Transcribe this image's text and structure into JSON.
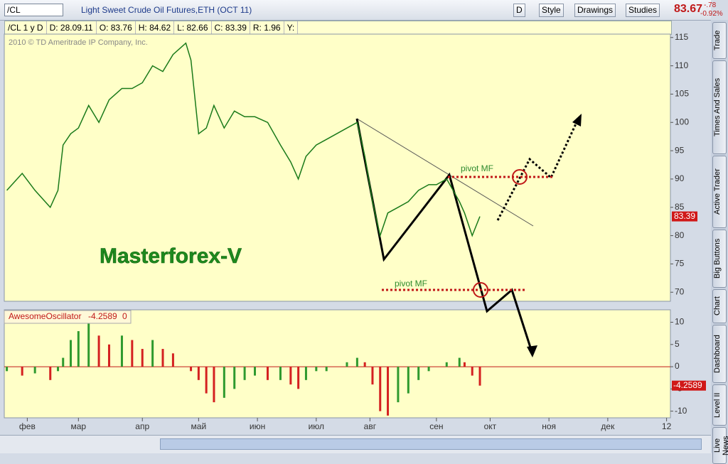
{
  "toolbar": {
    "symbol": "/CL",
    "title": "Light Sweet Crude Oil Futures,ETH (OCT 11)",
    "buttons": [
      "D",
      "Style",
      "Drawings",
      "Studies"
    ],
    "price": "83.67",
    "change": "-.78",
    "change_pct": "-0.92%"
  },
  "info_bar": [
    "/CL 1 y D",
    "D: 28.09.11",
    "O: 83.76",
    "H: 84.62",
    "L: 82.66",
    "C: 83.39",
    "R: 1.96",
    "Y:"
  ],
  "watermark": "2010 © TD Ameritrade IP Company, Inc.",
  "brand": "Masterforex-V",
  "annotations": [
    "pivot MF",
    "pivot MF"
  ],
  "side_tabs": [
    "Trade",
    "Times And Sales",
    "Active Trader",
    "Big Buttons",
    "Chart",
    "Dashboard",
    "Level II",
    "Live News"
  ],
  "chart_data": [
    {
      "type": "line",
      "color": "#1a7a1a",
      "x": [
        1,
        7,
        12,
        18,
        21,
        23,
        26,
        29,
        33,
        37,
        41,
        46,
        50,
        54,
        58,
        62,
        66,
        71,
        73,
        76,
        79,
        82,
        86,
        90,
        94,
        98,
        103,
        108,
        112,
        115,
        118,
        122,
        126,
        130,
        134,
        138,
        141,
        144,
        147,
        150,
        154,
        158,
        162,
        166,
        169,
        173,
        178,
        180,
        183,
        186
      ],
      "values": [
        88,
        91,
        88,
        85,
        88,
        96,
        98,
        99,
        103,
        100,
        104,
        106,
        106,
        107,
        110,
        109,
        112,
        114,
        111,
        98,
        99,
        103,
        99,
        102,
        101,
        101,
        100,
        96,
        93,
        90,
        94,
        96,
        97,
        98,
        99,
        100,
        94,
        86,
        80,
        84,
        85,
        86,
        88,
        89,
        89,
        90,
        86,
        84,
        80,
        83.39
      ],
      "last_price": 83.39,
      "xlim": [
        0,
        260.5
      ],
      "xticks": [
        {
          "value": 9,
          "label": "фев"
        },
        {
          "value": 29,
          "label": "мар"
        },
        {
          "value": 54,
          "label": "апр"
        },
        {
          "value": 76,
          "label": "май"
        },
        {
          "value": 99,
          "label": "июн"
        },
        {
          "value": 122,
          "label": "июл"
        },
        {
          "value": 143,
          "label": "авг"
        },
        {
          "value": 169,
          "label": "сен"
        },
        {
          "value": 190,
          "label": "окт"
        },
        {
          "value": 213,
          "label": "ноя"
        },
        {
          "value": 236,
          "label": "дек"
        },
        {
          "value": 259,
          "label": "12"
        }
      ],
      "ylim": [
        68.4,
        115.6
      ],
      "yticks": [
        70,
        75,
        80,
        85,
        90,
        95,
        100,
        105,
        110,
        115
      ]
    },
    {
      "type": "bar",
      "title": "AwesomeOscillator",
      "last_value": -4.2589,
      "zero_label": "0",
      "up_color": "#2e9a2e",
      "down_color": "#d42020",
      "x": [
        1,
        7,
        12,
        18,
        21,
        23,
        26,
        29,
        33,
        37,
        41,
        46,
        50,
        54,
        58,
        62,
        66,
        71,
        73,
        76,
        79,
        82,
        86,
        90,
        94,
        98,
        103,
        108,
        112,
        115,
        118,
        122,
        126,
        130,
        134,
        138,
        141,
        144,
        147,
        150,
        154,
        158,
        162,
        166,
        169,
        173,
        178,
        180,
        183,
        186
      ],
      "values": [
        -1,
        -2,
        -1.5,
        -3,
        -1,
        2,
        6,
        8,
        11,
        7,
        5,
        7,
        6,
        4,
        6,
        4,
        3,
        0,
        -1,
        -3,
        -6,
        -8,
        -7,
        -5,
        -3,
        -2,
        -3,
        -3,
        -4,
        -5,
        -3,
        -1,
        -1,
        0,
        1,
        2,
        1,
        -4,
        -10,
        -11,
        -8,
        -6,
        -3,
        -1,
        0,
        1,
        2,
        1,
        -2,
        -4.2589
      ],
      "ylim": [
        -11.5,
        12.8
      ],
      "yticks": [
        10,
        5,
        0,
        -5,
        -10
      ]
    }
  ]
}
